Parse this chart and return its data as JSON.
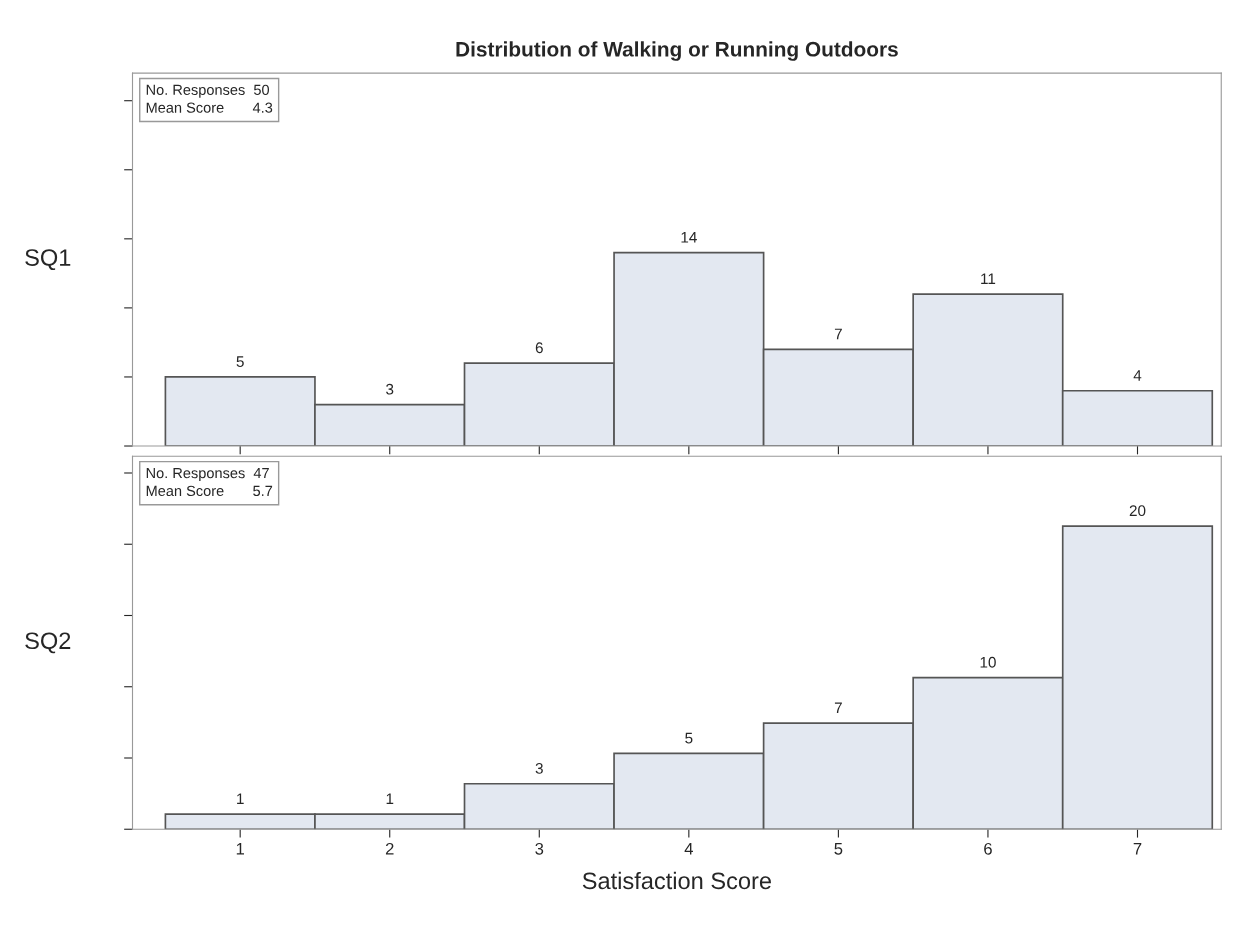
{
  "chart_data": [
    {
      "type": "bar",
      "title": "Distribution of Walking or Running Outdoors",
      "ylabel": "SQ1",
      "categories": [
        "1",
        "2",
        "3",
        "4",
        "5",
        "6",
        "7"
      ],
      "values": [
        5,
        3,
        6,
        14,
        7,
        11,
        4
      ],
      "color": "#e3e8f1",
      "data_labels": true,
      "grid": false,
      "tick_labels": false,
      "ylim": [
        0,
        27
      ],
      "yticks": [
        {
          "value": 0,
          "label": null
        },
        {
          "value": 5,
          "label": null
        },
        {
          "value": 10,
          "label": null
        },
        {
          "value": 15,
          "label": null
        },
        {
          "value": 20,
          "label": null
        },
        {
          "value": 25,
          "label": null
        }
      ],
      "annotations": [
        "No. Responses  50",
        "Mean Score       4.3"
      ]
    },
    {
      "type": "bar",
      "ylabel": "SQ2",
      "xlabel": "Satisfaction Score",
      "categories": [
        "1",
        "2",
        "3",
        "4",
        "5",
        "6",
        "7"
      ],
      "values": [
        1,
        1,
        3,
        5,
        7,
        10,
        20
      ],
      "color": "#e3e8f1",
      "data_labels": true,
      "grid": false,
      "tick_labels": "x",
      "ylim": [
        0,
        24.6
      ],
      "yticks": [
        {
          "value": 0,
          "label": null
        },
        {
          "value": 4.7,
          "label": null
        },
        {
          "value": 9.4,
          "label": null
        },
        {
          "value": 14.1,
          "label": null
        },
        {
          "value": 18.8,
          "label": null
        },
        {
          "value": 23.5,
          "label": null
        }
      ],
      "annotations": [
        "No. Responses  47",
        "Mean Score       5.7"
      ]
    }
  ]
}
